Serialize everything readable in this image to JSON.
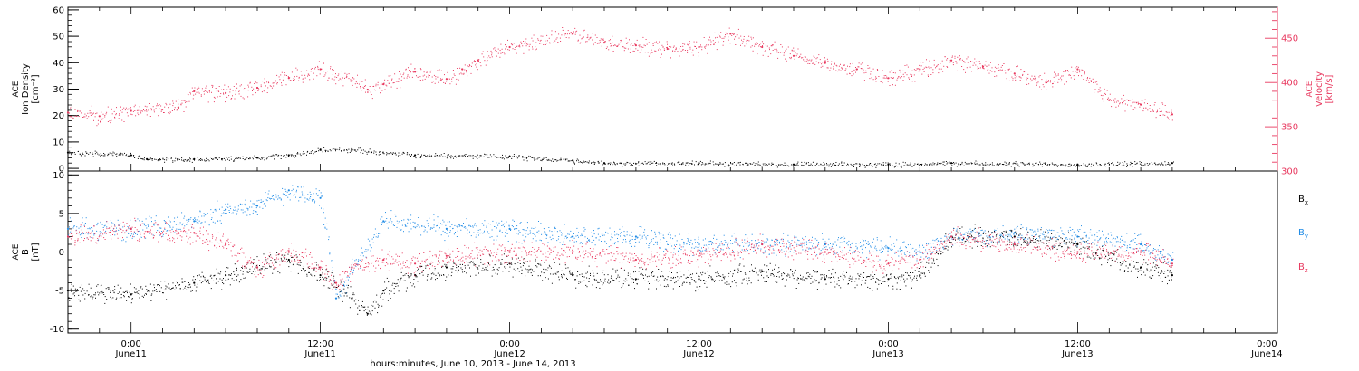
{
  "colors": {
    "ink": "#000000",
    "velocity": "#e8395f",
    "by": "#1f8be6",
    "bz": "#e8395f"
  },
  "x_axis": {
    "range": [
      "2013-06-10T20:00",
      "2013-06-14T00:40"
    ],
    "ticks": [
      {
        "time": "2013-06-11T00:00",
        "hm": "0:00",
        "day": "June11"
      },
      {
        "time": "2013-06-11T12:00",
        "hm": "12:00",
        "day": "June11"
      },
      {
        "time": "2013-06-12T00:00",
        "hm": "0:00",
        "day": "June12"
      },
      {
        "time": "2013-06-12T12:00",
        "hm": "12:00",
        "day": "June12"
      },
      {
        "time": "2013-06-13T00:00",
        "hm": "0:00",
        "day": "June13"
      },
      {
        "time": "2013-06-13T12:00",
        "hm": "12:00",
        "day": "June13"
      },
      {
        "time": "2013-06-14T00:00",
        "hm": "0:00",
        "day": "June14"
      }
    ],
    "label": "hours:minutes, June 10, 2013 - June 14, 2013"
  },
  "chart_data": [
    {
      "type": "scatter",
      "ylabel_lines": [
        "ACE",
        "Ion Density",
        "[cm⁻³]"
      ],
      "ylim": [
        -1,
        61
      ],
      "yticks": [
        0,
        10,
        20,
        30,
        40,
        50,
        60
      ],
      "y2label_lines": [
        "ACE",
        "Velocity",
        "[km/s]"
      ],
      "y2lim": [
        300,
        485
      ],
      "y2ticks": [
        300,
        350,
        400,
        450
      ],
      "grid": false,
      "series": [
        {
          "axis": "left",
          "color": "#000000",
          "x": [
            "2013-06-10T20:00",
            "2013-06-11T00:00",
            "2013-06-11T01:00",
            "2013-06-11T04:00",
            "2013-06-11T08:00",
            "2013-06-11T10:00",
            "2013-06-11T12:00",
            "2013-06-11T14:00",
            "2013-06-11T18:00",
            "2013-06-12T00:00",
            "2013-06-12T04:00",
            "2013-06-12T06:00",
            "2013-06-12T12:00",
            "2013-06-12T18:00",
            "2013-06-13T00:00",
            "2013-06-13T04:00",
            "2013-06-13T12:00",
            "2013-06-13T18:00"
          ],
          "values": [
            6,
            5,
            3.5,
            3.5,
            4,
            5,
            7,
            7,
            5,
            4.5,
            3,
            2,
            2,
            1.5,
            1.5,
            2,
            1.5,
            2
          ]
        },
        {
          "axis": "right",
          "color": "#e8395f",
          "x": [
            "2013-06-10T20:00",
            "2013-06-10T22:00",
            "2013-06-11T00:00",
            "2013-06-11T03:00",
            "2013-06-11T04:00",
            "2013-06-11T06:00",
            "2013-06-11T08:00",
            "2013-06-11T10:00",
            "2013-06-11T12:00",
            "2013-06-11T14:00",
            "2013-06-11T15:00",
            "2013-06-11T16:00",
            "2013-06-11T18:00",
            "2013-06-11T20:00",
            "2013-06-11T21:00",
            "2013-06-11T22:00",
            "2013-06-12T00:00",
            "2013-06-12T04:00",
            "2013-06-12T06:00",
            "2013-06-12T08:00",
            "2013-06-12T10:00",
            "2013-06-12T12:00",
            "2013-06-12T14:00",
            "2013-06-12T16:00",
            "2013-06-12T18:00",
            "2013-06-12T20:00",
            "2013-06-12T22:00",
            "2013-06-13T00:00",
            "2013-06-13T02:00",
            "2013-06-13T04:00",
            "2013-06-13T06:00",
            "2013-06-13T08:00",
            "2013-06-13T10:00",
            "2013-06-13T12:00",
            "2013-06-13T14:00",
            "2013-06-13T16:00",
            "2013-06-13T18:00"
          ],
          "values": [
            366,
            362,
            368,
            372,
            390,
            388,
            394,
            405,
            415,
            402,
            392,
            398,
            412,
            404,
            415,
            425,
            440,
            455,
            445,
            442,
            438,
            440,
            455,
            440,
            430,
            422,
            415,
            405,
            415,
            425,
            418,
            410,
            400,
            415,
            380,
            375,
            364
          ]
        }
      ]
    },
    {
      "type": "scatter",
      "ylabel_lines": [
        "ACE",
        "B",
        "[nT]"
      ],
      "ylim": [
        -10.5,
        10.5
      ],
      "yticks": [
        -10,
        -5,
        0,
        5,
        10
      ],
      "zero_line": true,
      "grid": false,
      "legend": {
        "placement": "right",
        "entries": [
          {
            "base": "B",
            "sub": "x",
            "color": "#000000"
          },
          {
            "base": "B",
            "sub": "y",
            "color": "#1f8be6"
          },
          {
            "base": "B",
            "sub": "z",
            "color": "#e8395f"
          }
        ]
      },
      "series": [
        {
          "name": "Bx",
          "color": "#000000",
          "x": [
            "2013-06-10T20:00",
            "2013-06-11T00:00",
            "2013-06-11T04:00",
            "2013-06-11T06:00",
            "2013-06-11T08:00",
            "2013-06-11T10:00",
            "2013-06-11T12:00",
            "2013-06-11T14:00",
            "2013-06-11T15:00",
            "2013-06-11T16:00",
            "2013-06-11T18:00",
            "2013-06-11T20:00",
            "2013-06-12T00:00",
            "2013-06-12T04:00",
            "2013-06-12T08:00",
            "2013-06-12T12:00",
            "2013-06-12T16:00",
            "2013-06-12T20:00",
            "2013-06-13T00:00",
            "2013-06-13T02:00",
            "2013-06-13T04:00",
            "2013-06-13T08:00",
            "2013-06-13T12:00",
            "2013-06-13T16:00",
            "2013-06-13T18:00"
          ],
          "values": [
            -5,
            -5.5,
            -4,
            -3,
            -2,
            -1,
            -3,
            -6,
            -8,
            -5,
            -3,
            -2,
            -1.5,
            -3,
            -3.5,
            -3.5,
            -2.5,
            -3.5,
            -3.5,
            -3,
            2,
            2,
            1,
            -2,
            -3
          ]
        },
        {
          "name": "By",
          "color": "#1f8be6",
          "x": [
            "2013-06-10T20:00",
            "2013-06-11T00:00",
            "2013-06-11T04:00",
            "2013-06-11T06:00",
            "2013-06-11T08:00",
            "2013-06-11T10:00",
            "2013-06-11T12:00",
            "2013-06-11T13:00",
            "2013-06-11T14:00",
            "2013-06-11T16:00",
            "2013-06-11T20:00",
            "2013-06-12T00:00",
            "2013-06-12T04:00",
            "2013-06-12T08:00",
            "2013-06-12T12:00",
            "2013-06-12T16:00",
            "2013-06-12T20:00",
            "2013-06-13T00:00",
            "2013-06-13T02:00",
            "2013-06-13T04:00",
            "2013-06-13T08:00",
            "2013-06-13T12:00",
            "2013-06-13T16:00",
            "2013-06-13T18:00"
          ],
          "values": [
            3,
            3,
            4,
            5.5,
            6,
            8,
            7,
            -6,
            -2,
            4,
            3,
            3,
            2,
            2,
            1,
            1,
            1,
            0.5,
            0,
            2,
            2.5,
            2,
            1,
            -1
          ]
        },
        {
          "name": "Bz",
          "color": "#e8395f",
          "x": [
            "2013-06-10T20:00",
            "2013-06-11T00:00",
            "2013-06-11T04:00",
            "2013-06-11T06:00",
            "2013-06-11T08:00",
            "2013-06-11T10:00",
            "2013-06-11T12:00",
            "2013-06-11T13:00",
            "2013-06-11T14:00",
            "2013-06-11T16:00",
            "2013-06-11T18:00",
            "2013-06-11T20:00",
            "2013-06-12T00:00",
            "2013-06-12T04:00",
            "2013-06-12T08:00",
            "2013-06-12T12:00",
            "2013-06-12T16:00",
            "2013-06-12T20:00",
            "2013-06-13T00:00",
            "2013-06-13T02:00",
            "2013-06-13T04:00",
            "2013-06-13T08:00",
            "2013-06-13T12:00",
            "2013-06-13T16:00",
            "2013-06-13T18:00"
          ],
          "values": [
            2,
            3,
            2.5,
            1,
            -2,
            0,
            -2,
            -4,
            -2,
            -1,
            -1.5,
            -0.5,
            0,
            0,
            -1,
            -0.5,
            1,
            0,
            -1.5,
            -1,
            2,
            1,
            0,
            0,
            -1.5
          ]
        }
      ]
    }
  ]
}
